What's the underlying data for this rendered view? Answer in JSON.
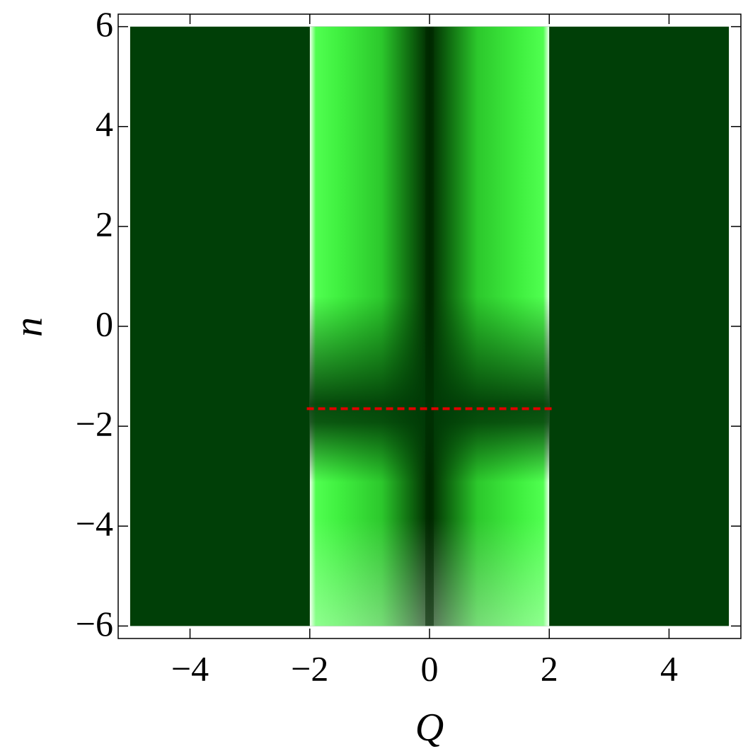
{
  "chart_data": {
    "type": "density",
    "x_label": "Q",
    "y_label": "n",
    "xlim": [
      -5.2,
      5.2
    ],
    "ylim": [
      -6.25,
      6.25
    ],
    "xrange": [
      -5,
      5
    ],
    "yrange": [
      -6,
      6
    ],
    "band": [
      -2,
      2
    ],
    "background_color": "#003f07",
    "xticks": [
      {
        "value": -4,
        "label": "−4"
      },
      {
        "value": -2,
        "label": "−2"
      },
      0,
      2,
      4
    ],
    "yticks": [
      {
        "value": -6,
        "label": "−6"
      },
      {
        "value": -4,
        "label": "−4"
      },
      {
        "value": -2,
        "label": "−2"
      },
      0,
      2,
      4,
      6
    ],
    "reference_line": {
      "y": -1.65,
      "x": [
        -2.05,
        2.05
      ],
      "color": "#e00000",
      "dashed": true
    }
  }
}
